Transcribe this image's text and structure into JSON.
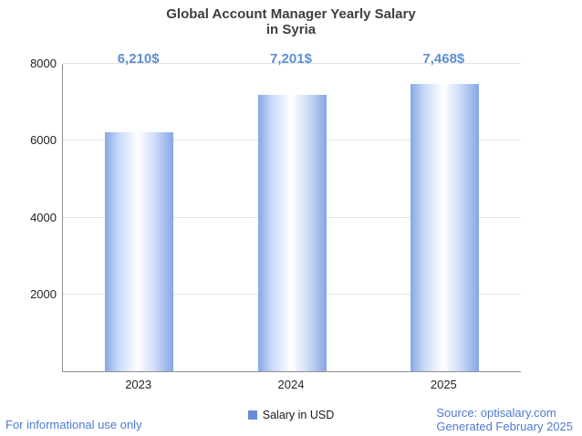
{
  "chart_data": {
    "type": "bar",
    "title": "Global Account Manager Yearly Salary",
    "subtitle": "in Syria",
    "categories": [
      "2023",
      "2024",
      "2025"
    ],
    "values": [
      6210,
      7201,
      7468
    ],
    "value_labels": [
      "6,210$",
      "7,201$",
      "7,468$"
    ],
    "series_name": "Salary in USD",
    "xlabel": "",
    "ylabel": "",
    "ylim": [
      0,
      8000
    ],
    "yticks": [
      2000,
      4000,
      6000,
      8000
    ],
    "grid": true,
    "legend_position": "bottom"
  },
  "legend": {
    "label": "Salary in USD"
  },
  "footer": {
    "left": "For informational use only",
    "source": "Source: optisalary.com",
    "generated": "Generated February 2025"
  },
  "colors": {
    "value_label": "#5d8fd3",
    "footer_text": "#4e79d2",
    "bar_edge": "#86a8e6",
    "bar_center": "#ffffff",
    "legend_swatch": "#6a8cd8",
    "gridline": "#e4e4e4",
    "axis": "#8e8e8e"
  }
}
